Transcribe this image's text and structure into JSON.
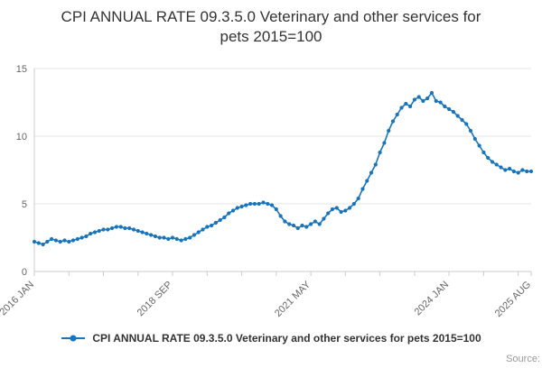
{
  "chart_data": {
    "type": "line",
    "title": "CPI ANNUAL RATE 09.3.5.0 Veterinary and other services for pets 2015=100",
    "xlabel": "",
    "ylabel": "",
    "ylim": [
      0,
      15
    ],
    "yticks": [
      0,
      5,
      10,
      15
    ],
    "grid": true,
    "legend_position": "bottom",
    "line_color": "#1874bc",
    "axis_color": "#cccccc",
    "grid_color": "#e6e6e6",
    "label_color": "#666666",
    "x_frequency": "monthly",
    "x_start": "2016 JAN",
    "x_end": "2025 AUG",
    "x_minor_tick_every": 8,
    "x_tick_labels": [
      {
        "index": 0,
        "label": "2016 JAN"
      },
      {
        "index": 32,
        "label": "2018 SEP"
      },
      {
        "index": 64,
        "label": "2021 MAY"
      },
      {
        "index": 96,
        "label": "2024 JAN"
      },
      {
        "index": 115,
        "label": "2025 AUG"
      }
    ],
    "series": [
      {
        "name": "CPI ANNUAL RATE 09.3.5.0 Veterinary and other services for pets 2015=100",
        "values": [
          2.2,
          2.1,
          2.0,
          2.2,
          2.4,
          2.3,
          2.2,
          2.3,
          2.2,
          2.3,
          2.4,
          2.5,
          2.6,
          2.8,
          2.9,
          3.0,
          3.1,
          3.1,
          3.2,
          3.3,
          3.3,
          3.2,
          3.2,
          3.1,
          3.0,
          2.9,
          2.8,
          2.7,
          2.6,
          2.5,
          2.5,
          2.4,
          2.5,
          2.4,
          2.3,
          2.4,
          2.5,
          2.7,
          2.9,
          3.1,
          3.3,
          3.4,
          3.6,
          3.8,
          4.0,
          4.3,
          4.5,
          4.7,
          4.8,
          4.9,
          5.0,
          5.0,
          5.0,
          5.1,
          5.0,
          4.9,
          4.6,
          4.1,
          3.7,
          3.5,
          3.4,
          3.2,
          3.4,
          3.3,
          3.5,
          3.7,
          3.5,
          3.9,
          4.3,
          4.6,
          4.7,
          4.4,
          4.5,
          4.7,
          5.0,
          5.4,
          6.1,
          6.7,
          7.3,
          7.9,
          8.8,
          9.5,
          10.4,
          11.1,
          11.6,
          12.1,
          12.4,
          12.2,
          12.7,
          12.9,
          12.6,
          12.8,
          13.2,
          12.6,
          12.5,
          12.2,
          12.0,
          11.8,
          11.5,
          11.2,
          10.9,
          10.4,
          9.8,
          9.3,
          8.8,
          8.4,
          8.1,
          7.9,
          7.7,
          7.5,
          7.6,
          7.4,
          7.3,
          7.5,
          7.4,
          7.4
        ]
      }
    ],
    "source_label": "Source:"
  }
}
